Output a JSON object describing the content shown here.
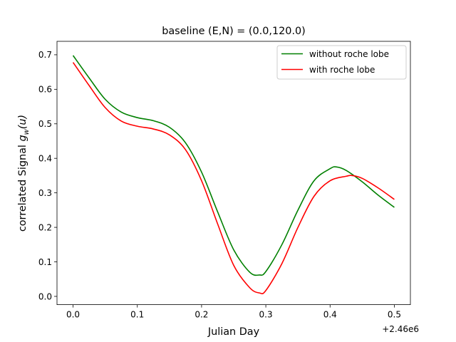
{
  "chart_data": {
    "type": "line",
    "title": "baseline (E,N) = (0.0,120.0)",
    "xlabel": "Julian Day",
    "ylabel_prefix": "correlated Signal ",
    "ylabel_math": "g",
    "ylabel_sub": "w",
    "ylabel_suffix": "(u)",
    "offset_text": "+2.46e6",
    "xlim": [
      -0.025,
      0.525
    ],
    "ylim": [
      -0.024,
      0.739
    ],
    "x_ticks": [
      0.0,
      0.1,
      0.2,
      0.3,
      0.4,
      0.5
    ],
    "x_tick_labels": [
      "0.0",
      "0.1",
      "0.2",
      "0.3",
      "0.4",
      "0.5"
    ],
    "y_ticks": [
      0.0,
      0.1,
      0.2,
      0.3,
      0.4,
      0.5,
      0.6,
      0.7
    ],
    "y_tick_labels": [
      "0.0",
      "0.1",
      "0.2",
      "0.3",
      "0.4",
      "0.5",
      "0.6",
      "0.7"
    ],
    "grid": false,
    "legend_position": "top-right",
    "series": [
      {
        "name": "without roche lobe",
        "color": "#008000",
        "x": [
          0.0,
          0.025,
          0.05,
          0.075,
          0.1,
          0.125,
          0.15,
          0.175,
          0.2,
          0.225,
          0.25,
          0.275,
          0.29,
          0.3,
          0.325,
          0.35,
          0.375,
          0.4,
          0.41,
          0.425,
          0.45,
          0.475,
          0.5
        ],
        "y": [
          0.698,
          0.633,
          0.571,
          0.534,
          0.518,
          0.509,
          0.49,
          0.445,
          0.36,
          0.245,
          0.135,
          0.07,
          0.062,
          0.072,
          0.15,
          0.25,
          0.335,
          0.37,
          0.375,
          0.365,
          0.332,
          0.293,
          0.258
        ]
      },
      {
        "name": "with roche lobe",
        "color": "#ff0000",
        "x": [
          0.0,
          0.025,
          0.05,
          0.075,
          0.1,
          0.125,
          0.15,
          0.175,
          0.2,
          0.225,
          0.25,
          0.275,
          0.29,
          0.3,
          0.325,
          0.35,
          0.375,
          0.4,
          0.425,
          0.435,
          0.45,
          0.475,
          0.5
        ],
        "y": [
          0.678,
          0.611,
          0.547,
          0.508,
          0.493,
          0.485,
          0.468,
          0.425,
          0.335,
          0.21,
          0.09,
          0.025,
          0.01,
          0.017,
          0.095,
          0.2,
          0.29,
          0.335,
          0.348,
          0.35,
          0.342,
          0.314,
          0.281
        ]
      }
    ]
  }
}
